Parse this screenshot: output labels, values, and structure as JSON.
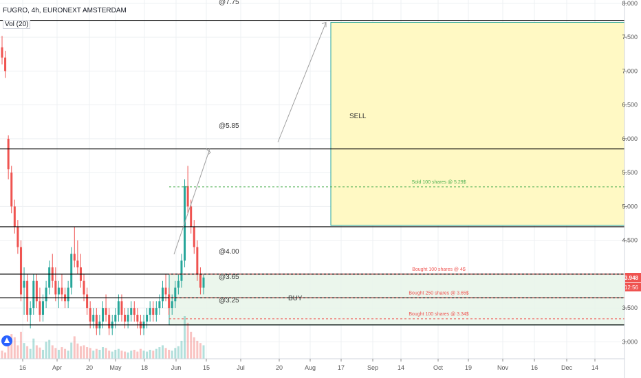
{
  "header": {
    "symbol_title": "FUGRO, 4h, EURONEXT AMSTERDAM",
    "volume_indicator": "Vol (20)"
  },
  "colors": {
    "up": "#26a69a",
    "down": "#ef5350",
    "sell_zone_fill": "#fff9c4",
    "sell_zone_border": "#26a69a",
    "buy_zone_fill": "#e8f5e9",
    "buy_zone_border": "#26a69a",
    "price_tag": "#ef5350",
    "axis_text": "#555555",
    "grid": "#eef0f3"
  },
  "chart_data": {
    "type": "candlestick",
    "title": "FUGRO, 4h, EURONEXT AMSTERDAM",
    "indicator": "Vol (20)",
    "y_axis": {
      "ticks": [
        "8.000",
        "7.500",
        "7.000",
        "6.500",
        "6.000",
        "5.500",
        "5.000",
        "4.500",
        "3.500",
        "3.000"
      ],
      "range": [
        2.75,
        8.05
      ]
    },
    "x_axis": {
      "ticks": [
        "16",
        "Apr",
        "20",
        "May",
        "18",
        "Jun",
        "15",
        "Jul",
        "20",
        "Aug",
        "17",
        "Sep",
        "14",
        "Oct",
        "19",
        "Nov",
        "16",
        "Dec",
        "14"
      ]
    },
    "horizontal_levels": [
      7.75,
      5.85,
      4.7,
      4.0,
      3.65,
      3.25
    ],
    "level_labels": [
      {
        "text": "@7.75",
        "price": 7.75
      },
      {
        "text": "@5.85",
        "price": 5.85
      },
      {
        "text": "@4.00",
        "price": 4.0
      },
      {
        "text": "@3.65",
        "price": 3.65
      },
      {
        "text": "@3.25",
        "price": 3.25
      }
    ],
    "dashed_levels": [
      {
        "label": "Sold 100 shares @ 5.29$",
        "price": 5.29,
        "color": "#4caf50"
      },
      {
        "label": "Bought 100 shares @ 4$",
        "price": 4.0,
        "color": "#ef5350"
      },
      {
        "label": "Bought 250 shares @ 3.65$",
        "price": 3.65,
        "color": "#ef5350"
      },
      {
        "label": "Bought 100 shares @ 3.34$",
        "price": 3.34,
        "color": "#ef5350"
      }
    ],
    "zones": [
      {
        "label": "SELL",
        "top": 7.72,
        "bottom": 4.72
      },
      {
        "label": "BUY",
        "top": 4.0,
        "bottom": 3.25
      }
    ],
    "current_price": {
      "value": "3.948",
      "countdown": "12:56"
    },
    "projection_targets": [
      5.85,
      7.72
    ],
    "candles": [
      [
        7.35,
        7.52,
        7.1,
        7.2
      ],
      [
        7.2,
        7.3,
        6.9,
        7.0
      ],
      [
        6.0,
        6.05,
        5.4,
        5.55
      ],
      [
        5.5,
        5.6,
        4.9,
        5.0
      ],
      [
        5.0,
        5.1,
        4.6,
        4.7
      ],
      [
        4.7,
        4.8,
        4.3,
        4.4
      ],
      [
        4.4,
        4.5,
        3.6,
        3.7
      ],
      [
        3.8,
        4.1,
        3.4,
        3.9
      ],
      [
        3.9,
        4.0,
        3.3,
        3.4
      ],
      [
        3.4,
        3.6,
        3.2,
        3.5
      ],
      [
        3.5,
        4.0,
        3.4,
        3.9
      ],
      [
        3.9,
        4.0,
        3.5,
        3.6
      ],
      [
        3.6,
        3.8,
        3.3,
        3.4
      ],
      [
        3.4,
        3.7,
        3.3,
        3.6
      ],
      [
        3.6,
        3.9,
        3.5,
        3.8
      ],
      [
        3.8,
        4.2,
        3.7,
        4.1
      ],
      [
        4.1,
        4.3,
        3.8,
        3.9
      ],
      [
        3.9,
        4.1,
        3.6,
        3.7
      ],
      [
        3.7,
        3.9,
        3.5,
        3.8
      ],
      [
        3.8,
        4.0,
        3.6,
        3.7
      ],
      [
        3.7,
        3.8,
        3.5,
        3.6
      ],
      [
        3.6,
        3.9,
        3.5,
        3.8
      ],
      [
        3.8,
        4.4,
        3.7,
        4.3
      ],
      [
        4.3,
        4.7,
        4.1,
        4.2
      ],
      [
        4.2,
        4.5,
        4.0,
        4.1
      ],
      [
        4.1,
        4.3,
        3.8,
        3.9
      ],
      [
        3.9,
        4.0,
        3.6,
        3.7
      ],
      [
        3.7,
        3.8,
        3.4,
        3.5
      ],
      [
        3.5,
        3.6,
        3.2,
        3.3
      ],
      [
        3.3,
        3.5,
        3.2,
        3.4
      ],
      [
        3.4,
        3.5,
        3.1,
        3.2
      ],
      [
        3.2,
        3.4,
        3.1,
        3.3
      ],
      [
        3.3,
        3.6,
        3.2,
        3.5
      ],
      [
        3.5,
        3.7,
        3.3,
        3.4
      ],
      [
        3.4,
        3.5,
        3.1,
        3.2
      ],
      [
        3.2,
        3.4,
        3.1,
        3.3
      ],
      [
        3.3,
        3.5,
        3.2,
        3.4
      ],
      [
        3.4,
        3.7,
        3.3,
        3.6
      ],
      [
        3.6,
        3.7,
        3.3,
        3.4
      ],
      [
        3.4,
        3.5,
        3.2,
        3.3
      ],
      [
        3.3,
        3.5,
        3.2,
        3.4
      ],
      [
        3.4,
        3.6,
        3.3,
        3.5
      ],
      [
        3.5,
        3.6,
        3.3,
        3.4
      ],
      [
        3.4,
        3.5,
        3.2,
        3.3
      ],
      [
        3.3,
        3.4,
        3.1,
        3.2
      ],
      [
        3.2,
        3.4,
        3.1,
        3.3
      ],
      [
        3.3,
        3.5,
        3.2,
        3.4
      ],
      [
        3.4,
        3.6,
        3.3,
        3.5
      ],
      [
        3.5,
        3.6,
        3.3,
        3.4
      ],
      [
        3.4,
        3.6,
        3.3,
        3.5
      ],
      [
        3.5,
        3.7,
        3.4,
        3.6
      ],
      [
        3.6,
        3.9,
        3.5,
        3.8
      ],
      [
        3.8,
        4.0,
        3.6,
        3.7
      ],
      [
        3.7,
        3.8,
        3.4,
        3.5
      ],
      [
        3.5,
        3.7,
        3.4,
        3.6
      ],
      [
        3.6,
        3.9,
        3.5,
        3.8
      ],
      [
        3.8,
        4.0,
        3.7,
        3.9
      ],
      [
        3.9,
        4.3,
        3.8,
        4.2
      ],
      [
        4.2,
        5.4,
        4.1,
        5.3
      ],
      [
        5.3,
        5.6,
        4.9,
        5.0
      ],
      [
        5.0,
        5.1,
        4.6,
        4.7
      ],
      [
        4.7,
        4.8,
        4.3,
        4.4
      ],
      [
        4.4,
        4.5,
        3.9,
        4.0
      ],
      [
        4.0,
        4.1,
        3.7,
        3.8
      ],
      [
        3.8,
        4.0,
        3.7,
        3.95
      ]
    ],
    "volumes": [
      18,
      14,
      40,
      55,
      48,
      30,
      60,
      35,
      28,
      22,
      45,
      30,
      25,
      20,
      38,
      42,
      30,
      24,
      20,
      26,
      22,
      18,
      36,
      50,
      34,
      28,
      30,
      26,
      24,
      18,
      22,
      20,
      26,
      24,
      18,
      16,
      20,
      22,
      18,
      16,
      14,
      18,
      20,
      16,
      22,
      18,
      16,
      20,
      18,
      22,
      26,
      30,
      24,
      20,
      18,
      24,
      28,
      40,
      95,
      80,
      60,
      48,
      40,
      35,
      30
    ]
  }
}
